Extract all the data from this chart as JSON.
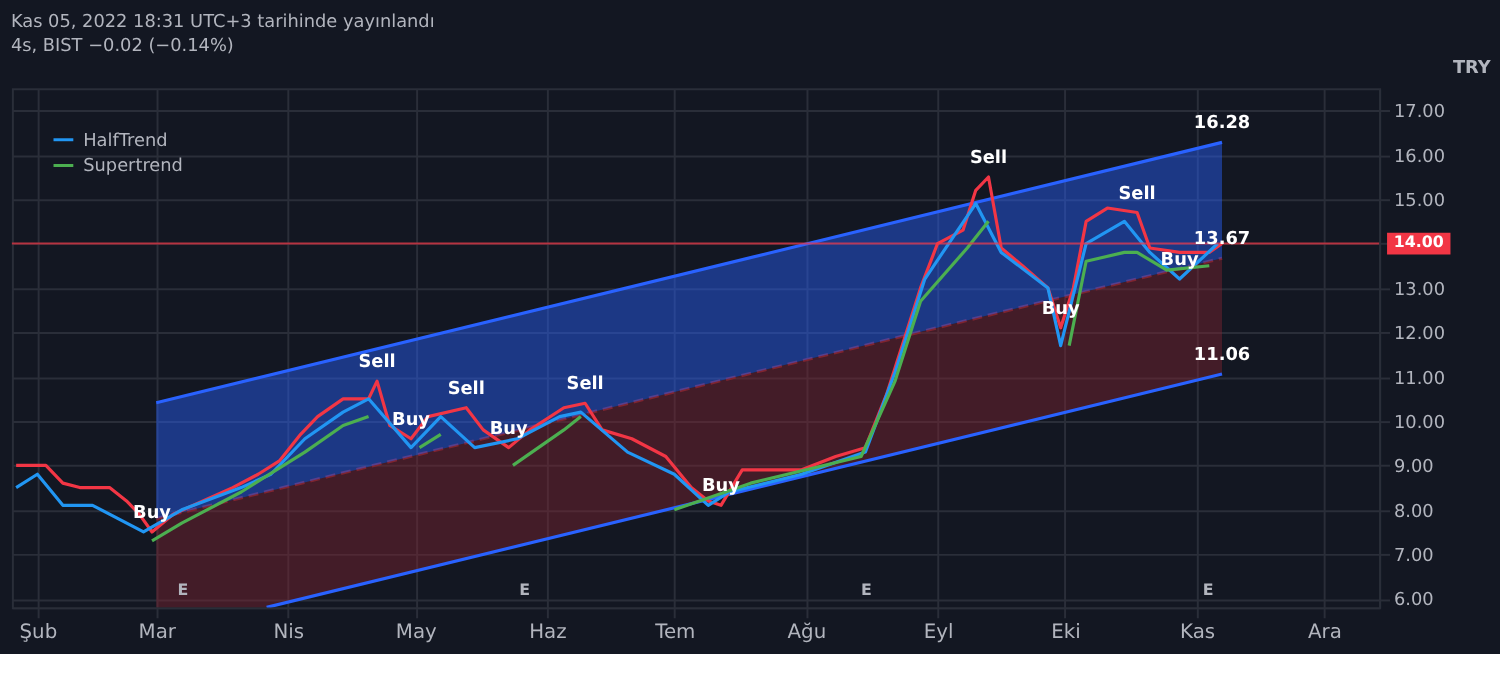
{
  "chart_data": {
    "type": "line",
    "title": "Kas 05, 2022 18:31 UTC+3 tarihinde yayınlandı",
    "subtitle": "4s, BIST −0.02 (−0.14%)",
    "ylabel": "TRY",
    "xlim": [
      "2022-01-26",
      "2022-12-14"
    ],
    "xticks": [
      {
        "value": "2022-02-01",
        "label": "Şub"
      },
      {
        "value": "2022-03-01",
        "label": "Mar"
      },
      {
        "value": "2022-04-01",
        "label": "Nis"
      },
      {
        "value": "2022-05-01",
        "label": "May"
      },
      {
        "value": "2022-06-01",
        "label": "Haz"
      },
      {
        "value": "2022-07-01",
        "label": "Tem"
      },
      {
        "value": "2022-08-01",
        "label": "Ağu"
      },
      {
        "value": "2022-09-01",
        "label": "Eyl"
      },
      {
        "value": "2022-10-01",
        "label": "Eki"
      },
      {
        "value": "2022-11-01",
        "label": "Kas"
      },
      {
        "value": "2022-12-01",
        "label": "Ara"
      }
    ],
    "ylim": [
      5.8,
      17.5
    ],
    "yticks": [
      {
        "value": 6,
        "label": "6.00"
      },
      {
        "value": 7,
        "label": "7.00"
      },
      {
        "value": 8,
        "label": "8.00"
      },
      {
        "value": 9,
        "label": "9.00"
      },
      {
        "value": 10,
        "label": "10.00"
      },
      {
        "value": 11,
        "label": "11.00"
      },
      {
        "value": 12,
        "label": "12.00"
      },
      {
        "value": 13,
        "label": "13.00"
      },
      {
        "value": 14,
        "label": null
      },
      {
        "value": 15,
        "label": "15.00"
      },
      {
        "value": 16,
        "label": "16.00"
      },
      {
        "value": 17,
        "label": "17.00"
      }
    ],
    "grid": true,
    "legend": "top left",
    "series": [
      {
        "color": "#7f2430",
        "line_style": "dashed",
        "x": [
          "2022-03-01",
          "2022-03-27",
          "2022-11-07"
        ],
        "values": [
          7.8,
          8.41,
          13.67
        ],
        "lower": [
          5.8,
          5.8,
          11.06
        ],
        "upper": [
          7.8,
          8.41,
          13.67
        ]
      },
      {
        "color": "#2962ff",
        "x": [
          "2022-03-01",
          "2022-11-07"
        ],
        "values": [
          10.41,
          16.28
        ],
        "lower": [
          7.8,
          13.67
        ],
        "upper": [
          10.41,
          16.28
        ]
      },
      {
        "color": "#2962ff",
        "x": [
          "2022-03-27",
          "2022-11-07"
        ],
        "values": [
          5.8,
          11.06
        ]
      },
      {
        "color": "#f23645",
        "x": [
          "2022-01-27",
          "2022-02-03",
          "2022-02-07",
          "2022-02-11",
          "2022-02-18",
          "2022-02-22",
          "2022-02-25",
          "2022-02-28",
          "2022-03-05",
          "2022-03-12",
          "2022-03-19",
          "2022-03-25",
          "2022-03-30",
          "2022-04-04",
          "2022-04-08",
          "2022-04-14",
          "2022-04-20",
          "2022-04-22",
          "2022-04-25",
          "2022-04-30",
          "2022-05-04",
          "2022-05-13",
          "2022-05-17",
          "2022-05-23",
          "2022-05-28",
          "2022-06-05",
          "2022-06-10",
          "2022-06-14",
          "2022-06-21",
          "2022-06-29",
          "2022-07-05",
          "2022-07-09",
          "2022-07-12",
          "2022-07-17",
          "2022-07-31",
          "2022-08-08",
          "2022-08-15",
          "2022-08-20",
          "2022-08-24",
          "2022-08-28",
          "2022-09-01",
          "2022-09-07",
          "2022-09-10",
          "2022-09-13",
          "2022-09-16",
          "2022-09-21",
          "2022-09-27",
          "2022-09-30",
          "2022-10-03",
          "2022-10-06",
          "2022-10-11",
          "2022-10-18",
          "2022-10-21",
          "2022-10-28",
          "2022-11-04",
          "2022-11-07"
        ],
        "values": [
          9.0,
          9.0,
          8.6,
          8.5,
          8.5,
          8.2,
          7.9,
          7.5,
          7.9,
          8.2,
          8.5,
          8.8,
          9.1,
          9.7,
          10.1,
          10.5,
          10.5,
          10.9,
          9.9,
          9.6,
          10.1,
          10.3,
          9.8,
          9.4,
          9.8,
          10.3,
          10.4,
          9.8,
          9.6,
          9.2,
          8.5,
          8.2,
          8.1,
          8.9,
          8.9,
          9.2,
          9.4,
          10.6,
          11.8,
          13.0,
          14.0,
          14.3,
          15.2,
          15.5,
          13.9,
          13.5,
          13.0,
          12.1,
          13.0,
          14.5,
          14.8,
          14.7,
          13.9,
          13.8,
          13.8,
          14.0
        ]
      },
      {
        "name": "HalfTrend",
        "color": "#2196f3",
        "x": [
          "2022-01-27",
          "2022-02-01",
          "2022-02-07",
          "2022-02-14",
          "2022-02-26",
          "2022-03-07",
          "2022-03-21",
          "2022-03-28",
          "2022-04-05",
          "2022-04-14",
          "2022-04-20",
          "2022-04-30",
          "2022-05-07",
          "2022-05-15",
          "2022-05-25",
          "2022-06-04",
          "2022-06-09",
          "2022-06-20",
          "2022-07-01",
          "2022-07-09",
          "2022-07-14",
          "2022-07-31",
          "2022-08-15",
          "2022-08-22",
          "2022-08-29",
          "2022-09-10",
          "2022-09-16",
          "2022-09-27",
          "2022-09-30",
          "2022-10-06",
          "2022-10-15",
          "2022-10-21",
          "2022-10-28",
          "2022-11-06"
        ],
        "values": [
          8.5,
          8.8,
          8.1,
          8.1,
          7.5,
          8.0,
          8.5,
          8.8,
          9.6,
          10.2,
          10.5,
          9.4,
          10.1,
          9.4,
          9.6,
          10.1,
          10.2,
          9.3,
          8.8,
          8.1,
          8.4,
          8.8,
          9.3,
          11.1,
          13.2,
          14.9,
          13.8,
          13.0,
          11.7,
          14.0,
          14.5,
          13.8,
          13.2,
          14.0
        ]
      },
      {
        "name": "Supertrend",
        "color": "#4caf50",
        "x": [
          "2022-02-28",
          "2022-03-07",
          "2022-03-21",
          "2022-04-05",
          "2022-04-14",
          "2022-04-20",
          "2022-04-25",
          "2022-05-02",
          "2022-05-07",
          "2022-05-12",
          "2022-05-24",
          "2022-06-05",
          "2022-06-09",
          "2022-06-20",
          "2022-07-01",
          "2022-07-19",
          "2022-08-14",
          "2022-08-22",
          "2022-08-28",
          "2022-09-08",
          "2022-09-13",
          "2022-09-20",
          "2022-10-02",
          "2022-10-06",
          "2022-10-15",
          "2022-10-18",
          "2022-10-25",
          "2022-11-04"
        ],
        "values": [
          7.3,
          7.7,
          8.4,
          9.3,
          9.9,
          10.1,
          null,
          9.4,
          9.7,
          null,
          9.0,
          9.8,
          10.1,
          null,
          8.0,
          8.6,
          9.2,
          10.9,
          12.7,
          13.9,
          14.5,
          null,
          11.7,
          13.6,
          13.8,
          13.8,
          13.4,
          13.5
        ]
      }
    ],
    "ref_lines": [
      {
        "axis": "y",
        "value": 14.0,
        "label": "14.00",
        "color": "#f23645"
      }
    ],
    "annotations": [
      {
        "text": "16.28",
        "x": "2022-11-07",
        "y": 16.28
      },
      {
        "text": "13.67",
        "x": "2022-11-07",
        "y": 13.67
      },
      {
        "text": "11.06",
        "x": "2022-11-07",
        "y": 11.06
      },
      {
        "text": "Buy",
        "x": "2022-02-28",
        "y": 7.5
      },
      {
        "text": "Sell",
        "x": "2022-04-22",
        "y": 10.9
      },
      {
        "text": "Buy",
        "x": "2022-04-30",
        "y": 9.6
      },
      {
        "text": "Sell",
        "x": "2022-05-13",
        "y": 10.3
      },
      {
        "text": "Buy",
        "x": "2022-05-23",
        "y": 9.4
      },
      {
        "text": "Sell",
        "x": "2022-06-10",
        "y": 10.4
      },
      {
        "text": "Buy",
        "x": "2022-07-12",
        "y": 8.1
      },
      {
        "text": "Sell",
        "x": "2022-09-13",
        "y": 15.5
      },
      {
        "text": "Buy",
        "x": "2022-09-30",
        "y": 12.1
      },
      {
        "text": "Sell",
        "x": "2022-10-18",
        "y": 14.7
      },
      {
        "text": "Buy",
        "x": "2022-10-28",
        "y": 13.2
      },
      "E",
      "E",
      "E",
      "E"
    ]
  }
}
